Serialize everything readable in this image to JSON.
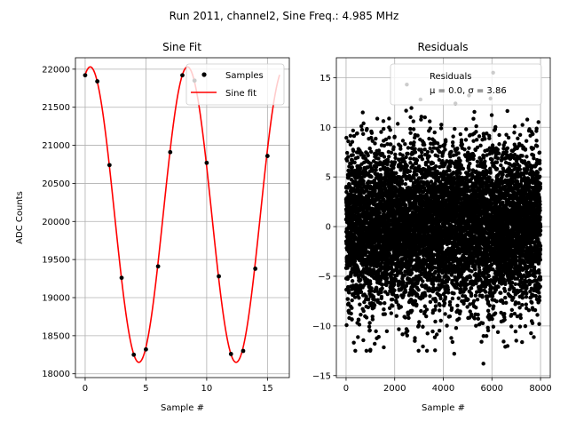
{
  "figure": {
    "suptitle": "Run 2011, channel2, Sine Freq.: 4.985 MHz"
  },
  "chart_data": [
    {
      "type": "line",
      "title": "Sine Fit",
      "xlabel": "Sample #",
      "ylabel": "ADC Counts",
      "xlim": [
        -0.8,
        16.8
      ],
      "ylim": [
        17950,
        22150
      ],
      "xticks": [
        0,
        5,
        10,
        15
      ],
      "yticks": [
        18000,
        18500,
        19000,
        19500,
        20000,
        20500,
        21000,
        21500,
        22000
      ],
      "grid": true,
      "legend_position": "top-right",
      "series": [
        {
          "name": "Samples",
          "kind": "scatter",
          "color": "#000000",
          "x": [
            0,
            1,
            2,
            3,
            4,
            5,
            6,
            7,
            8,
            9,
            10,
            11,
            12,
            13,
            14,
            15
          ],
          "y": [
            21920,
            21840,
            20740,
            19260,
            18250,
            18320,
            19410,
            20910,
            21920,
            21850,
            20770,
            19280,
            18260,
            18300,
            19380,
            20860
          ]
        },
        {
          "name": "Sine fit",
          "kind": "line",
          "color": "#ff0000",
          "model": {
            "offset": 20090,
            "amplitude": 1940,
            "period_samples": 8.0,
            "peak_at": 0.42,
            "x_range": [
              0,
              16
            ]
          }
        }
      ]
    },
    {
      "type": "scatter",
      "title": "Residuals",
      "xlabel": "Sample #",
      "ylabel": "",
      "xlim": [
        -400,
        8400
      ],
      "ylim": [
        -15.2,
        17.0
      ],
      "xticks": [
        0,
        2000,
        4000,
        6000,
        8000
      ],
      "yticks": [
        -15,
        -10,
        -5,
        0,
        5,
        10,
        15
      ],
      "grid": true,
      "legend_position": "top-right",
      "series": [
        {
          "name": "Residuals",
          "name_line2": "μ = 0.0, σ = 3.86",
          "color": "#000000",
          "count": 8000,
          "mean": 0.0,
          "std": 3.86,
          "x_range": [
            0,
            8000
          ],
          "notable_points": [
            {
              "x": 2500,
              "y": 14.3
            },
            {
              "x": 6050,
              "y": 15.5
            },
            {
              "x": 4500,
              "y": 12.4
            },
            {
              "x": 5650,
              "y": -13.8
            },
            {
              "x": 4450,
              "y": -12.8
            },
            {
              "x": 1000,
              "y": -12.4
            },
            {
              "x": 6550,
              "y": -12.1
            }
          ]
        }
      ]
    }
  ]
}
